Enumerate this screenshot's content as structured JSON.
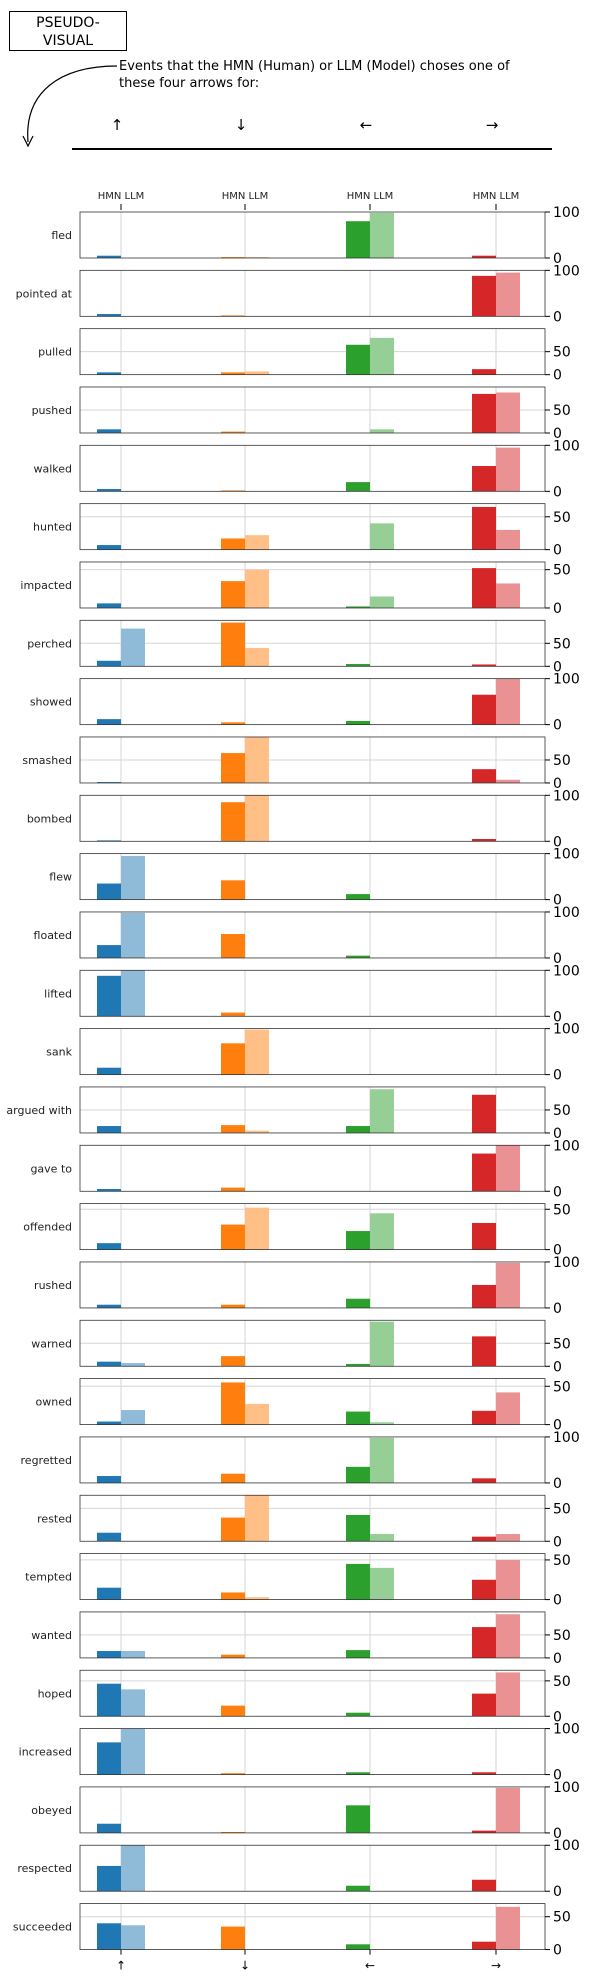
{
  "header": {
    "box_label": "PSEUDO- VISUAL",
    "description": "Events that the HMN (Human) or LLM (Model) choses one of these four arrows for:"
  },
  "chart_data": {
    "type": "bar",
    "arrows": [
      "↑",
      "↓",
      "←",
      "→"
    ],
    "column_header": "HMN LLM",
    "series": [
      {
        "name": "HMN"
      },
      {
        "name": "LLM"
      }
    ],
    "colors": {
      "↑": [
        "#1f77b4",
        "#8fbbd9"
      ],
      "↓": [
        "#ff7f0e",
        "#ffbf86"
      ],
      "←": [
        "#2ca02c",
        "#95cf95"
      ],
      "→": [
        "#d62728",
        "#ea9293"
      ]
    },
    "grid": true,
    "rows": [
      {
        "label": "fled",
        "ylim": [
          0,
          100
        ],
        "yticks": [
          0,
          100
        ],
        "hmn": [
          5,
          2,
          80,
          5
        ],
        "llm": [
          0,
          2,
          98,
          0
        ]
      },
      {
        "label": "pointed at",
        "ylim": [
          0,
          100
        ],
        "yticks": [
          0,
          100
        ],
        "hmn": [
          5,
          2,
          0,
          88
        ],
        "llm": [
          0,
          0,
          0,
          95
        ]
      },
      {
        "label": "pulled",
        "ylim": [
          0,
          100
        ],
        "yticks": [
          0,
          50
        ],
        "hmn": [
          5,
          5,
          65,
          12
        ],
        "llm": [
          0,
          7,
          80,
          0
        ]
      },
      {
        "label": "pushed",
        "ylim": [
          0,
          100
        ],
        "yticks": [
          0,
          50
        ],
        "hmn": [
          8,
          3,
          0,
          85
        ],
        "llm": [
          0,
          0,
          8,
          88
        ]
      },
      {
        "label": "walked",
        "ylim": [
          0,
          100
        ],
        "yticks": [
          0,
          100
        ],
        "hmn": [
          5,
          2,
          20,
          55
        ],
        "llm": [
          0,
          0,
          0,
          95
        ]
      },
      {
        "label": "hunted",
        "ylim": [
          0,
          70
        ],
        "yticks": [
          0,
          50
        ],
        "hmn": [
          7,
          17,
          0,
          65
        ],
        "llm": [
          0,
          22,
          40,
          30
        ]
      },
      {
        "label": "impacted",
        "ylim": [
          0,
          60
        ],
        "yticks": [
          0,
          50
        ],
        "hmn": [
          6,
          35,
          2,
          52
        ],
        "llm": [
          0,
          50,
          15,
          32
        ]
      },
      {
        "label": "perched",
        "ylim": [
          0,
          100
        ],
        "yticks": [
          0,
          50
        ],
        "hmn": [
          12,
          95,
          5,
          4
        ],
        "llm": [
          82,
          40,
          0,
          0
        ]
      },
      {
        "label": "showed",
        "ylim": [
          0,
          100
        ],
        "yticks": [
          0,
          100
        ],
        "hmn": [
          12,
          5,
          8,
          65
        ],
        "llm": [
          0,
          0,
          0,
          100
        ]
      },
      {
        "label": "smashed",
        "ylim": [
          0,
          100
        ],
        "yticks": [
          0,
          50
        ],
        "hmn": [
          2,
          65,
          0,
          30
        ],
        "llm": [
          0,
          100,
          0,
          7
        ]
      },
      {
        "label": "bombed",
        "ylim": [
          0,
          100
        ],
        "yticks": [
          0,
          100
        ],
        "hmn": [
          2,
          85,
          0,
          5
        ],
        "llm": [
          0,
          100,
          0,
          0
        ]
      },
      {
        "label": "flew",
        "ylim": [
          0,
          100
        ],
        "yticks": [
          0,
          100
        ],
        "hmn": [
          35,
          42,
          12,
          0
        ],
        "llm": [
          95,
          0,
          0,
          0
        ]
      },
      {
        "label": "floated",
        "ylim": [
          0,
          100
        ],
        "yticks": [
          0,
          100
        ],
        "hmn": [
          28,
          52,
          5,
          0
        ],
        "llm": [
          98,
          0,
          0,
          0
        ]
      },
      {
        "label": "lifted",
        "ylim": [
          0,
          100
        ],
        "yticks": [
          0,
          100
        ],
        "hmn": [
          88,
          8,
          0,
          0
        ],
        "llm": [
          100,
          0,
          0,
          0
        ]
      },
      {
        "label": "sank",
        "ylim": [
          0,
          100
        ],
        "yticks": [
          0,
          100
        ],
        "hmn": [
          15,
          68,
          0,
          0
        ],
        "llm": [
          0,
          98,
          0,
          0
        ]
      },
      {
        "label": "argued with",
        "ylim": [
          0,
          100
        ],
        "yticks": [
          0,
          50
        ],
        "hmn": [
          15,
          17,
          15,
          83
        ],
        "llm": [
          0,
          5,
          95,
          0
        ]
      },
      {
        "label": "gave to",
        "ylim": [
          0,
          100
        ],
        "yticks": [
          0,
          100
        ],
        "hmn": [
          5,
          8,
          0,
          82
        ],
        "llm": [
          0,
          0,
          0,
          100
        ]
      },
      {
        "label": "offended",
        "ylim": [
          0,
          57
        ],
        "yticks": [
          0,
          50
        ],
        "hmn": [
          8,
          31,
          23,
          33
        ],
        "llm": [
          0,
          52,
          45,
          0
        ]
      },
      {
        "label": "rushed",
        "ylim": [
          0,
          100
        ],
        "yticks": [
          0,
          100
        ],
        "hmn": [
          7,
          7,
          20,
          50
        ],
        "llm": [
          0,
          0,
          0,
          98
        ]
      },
      {
        "label": "warned",
        "ylim": [
          0,
          100
        ],
        "yticks": [
          0,
          50
        ],
        "hmn": [
          10,
          22,
          5,
          65
        ],
        "llm": [
          7,
          0,
          97,
          0
        ]
      },
      {
        "label": "owned",
        "ylim": [
          0,
          60
        ],
        "yticks": [
          0,
          50
        ],
        "hmn": [
          4,
          55,
          17,
          18
        ],
        "llm": [
          19,
          27,
          3,
          42
        ]
      },
      {
        "label": "regretted",
        "ylim": [
          0,
          100
        ],
        "yticks": [
          0,
          100
        ],
        "hmn": [
          15,
          20,
          35,
          10
        ],
        "llm": [
          0,
          0,
          98,
          0
        ]
      },
      {
        "label": "rested",
        "ylim": [
          0,
          70
        ],
        "yticks": [
          0,
          50
        ],
        "hmn": [
          13,
          36,
          40,
          7
        ],
        "llm": [
          0,
          70,
          11,
          11
        ]
      },
      {
        "label": "tempted",
        "ylim": [
          0,
          58
        ],
        "yticks": [
          0,
          50
        ],
        "hmn": [
          15,
          9,
          45,
          25
        ],
        "llm": [
          0,
          3,
          40,
          50
        ]
      },
      {
        "label": "wanted",
        "ylim": [
          0,
          100
        ],
        "yticks": [
          0,
          50
        ],
        "hmn": [
          15,
          7,
          17,
          67
        ],
        "llm": [
          15,
          0,
          0,
          95
        ]
      },
      {
        "label": "hoped",
        "ylim": [
          0,
          65
        ],
        "yticks": [
          0,
          50
        ],
        "hmn": [
          46,
          15,
          5,
          32
        ],
        "llm": [
          38,
          0,
          0,
          62
        ]
      },
      {
        "label": "increased",
        "ylim": [
          0,
          100
        ],
        "yticks": [
          0,
          100
        ],
        "hmn": [
          70,
          3,
          5,
          5
        ],
        "llm": [
          100,
          0,
          0,
          0
        ]
      },
      {
        "label": "obeyed",
        "ylim": [
          0,
          100
        ],
        "yticks": [
          0,
          100
        ],
        "hmn": [
          20,
          2,
          60,
          5
        ],
        "llm": [
          0,
          0,
          0,
          98
        ]
      },
      {
        "label": "respected",
        "ylim": [
          0,
          100
        ],
        "yticks": [
          0,
          100
        ],
        "hmn": [
          55,
          0,
          12,
          25
        ],
        "llm": [
          100,
          0,
          0,
          0
        ]
      },
      {
        "label": "succeeded",
        "ylim": [
          0,
          70
        ],
        "yticks": [
          0,
          50
        ],
        "hmn": [
          40,
          35,
          8,
          12
        ],
        "llm": [
          37,
          0,
          0,
          65
        ]
      }
    ]
  }
}
